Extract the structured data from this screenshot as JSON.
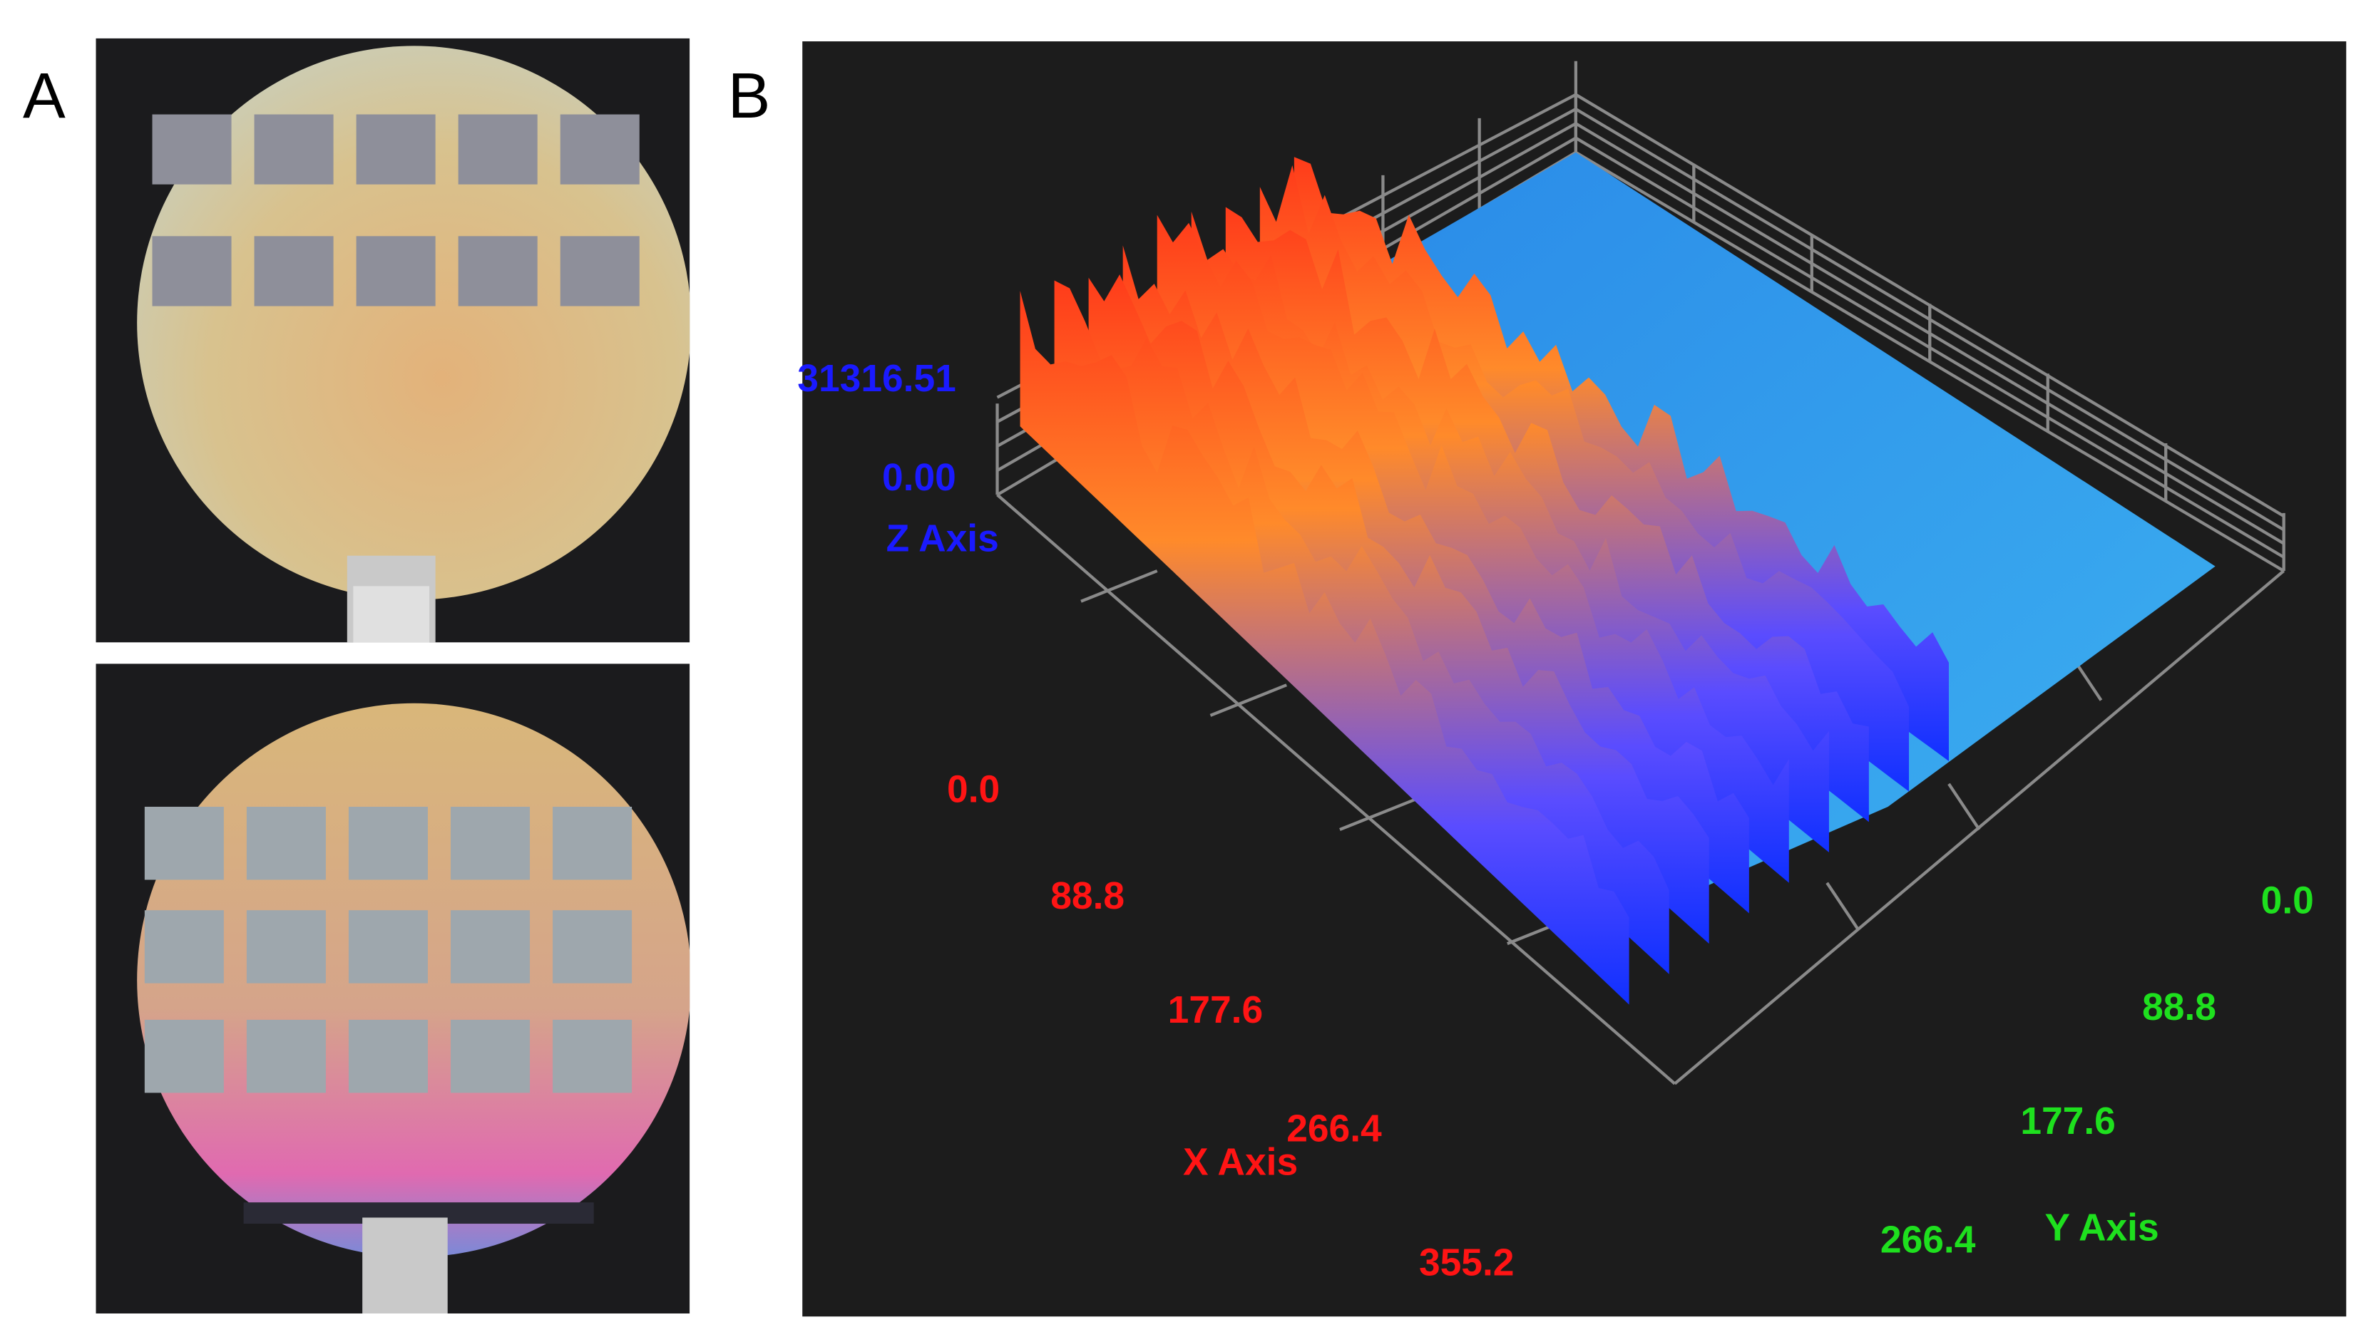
{
  "panel_a": {
    "label": "A"
  },
  "panel_b": {
    "label": "B",
    "z_axis": {
      "label": "Z Axis",
      "ticks": [
        "31316.51",
        "0.00"
      ]
    },
    "x_axis": {
      "label": "X Axis",
      "ticks": [
        "0.0",
        "88.8",
        "177.6",
        "266.4",
        "355.2"
      ]
    },
    "y_axis": {
      "label": "Y Axis",
      "ticks": [
        "0.0",
        "88.8",
        "177.6",
        "266.4"
      ]
    }
  }
}
